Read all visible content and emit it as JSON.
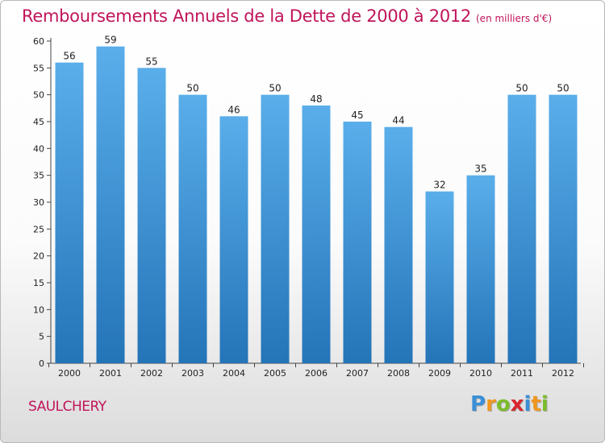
{
  "chart_data": {
    "type": "bar",
    "title": "Remboursements Annuels de la Dette de 2000 à 2012",
    "subtitle": "(en milliers d'€)",
    "xlabel": "",
    "ylabel": "",
    "categories": [
      "2000",
      "2001",
      "2002",
      "2003",
      "2004",
      "2005",
      "2006",
      "2007",
      "2008",
      "2009",
      "2010",
      "2011",
      "2012"
    ],
    "values": [
      56,
      59,
      55,
      50,
      46,
      50,
      48,
      45,
      44,
      32,
      35,
      50,
      50
    ],
    "ylim": [
      0,
      60
    ],
    "yticks": [
      0,
      5,
      10,
      15,
      20,
      25,
      30,
      35,
      40,
      45,
      50,
      55,
      60
    ],
    "grid": false,
    "bar_color_top": "#5aaeea",
    "bar_color_bottom": "#2474b8"
  },
  "footer": {
    "commune": "SAULCHERY",
    "brand": {
      "letters": [
        "P",
        "r",
        "o",
        "x",
        "i",
        "t",
        "i"
      ],
      "colors": [
        "#3b8fd6",
        "#f0961e",
        "#7cbc2c",
        "#d8262e",
        "#3b8fd6",
        "#f0961e",
        "#7cbc2c"
      ]
    }
  }
}
